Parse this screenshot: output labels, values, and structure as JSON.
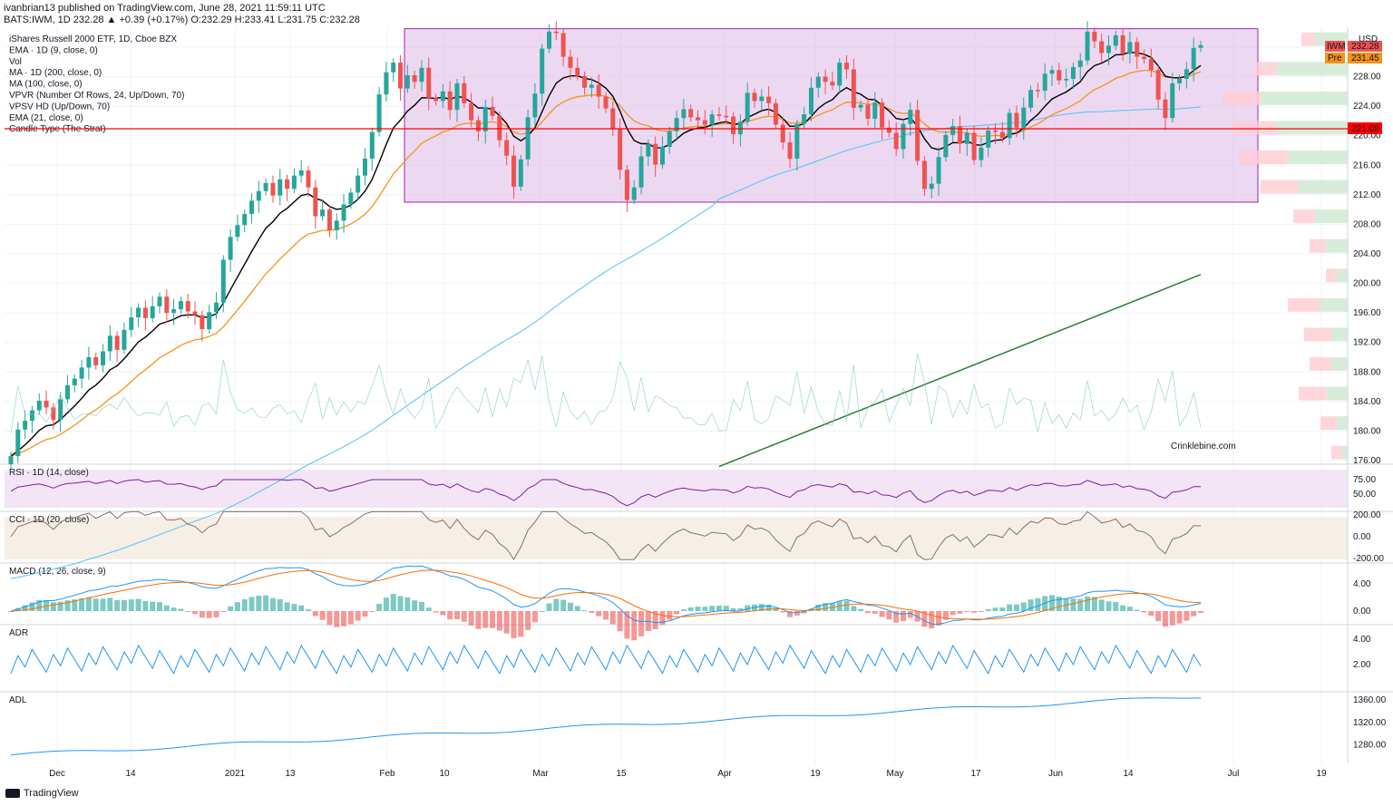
{
  "publisher_line": "ivanbrian13 published on TradingView.com, June 28, 2021 11:59:11 UTC",
  "symbol_line": "BATS:IWM, 1D  232.28  ▲ +0.39 (+0.17%)  O:232.29  H:233.41  L:231.75  C:232.28",
  "indicator_legend": [
    "iShares Russell 2000 ETF, 1D, Cboe BZX",
    "EMA · 1D (9, close, 0)",
    "Vol",
    "MA · 1D (200, close, 0)",
    "MA (100, close, 0)",
    "VPVR (Number Of Rows, 24, Up/Down, 70)",
    "VPSV HD (Up/Down, 70)",
    "EMA (21, close, 0)",
    "Candle Type (The Strat)"
  ],
  "price_badges": {
    "symbol": "IWM",
    "symbol_price": "232.28",
    "pre": "Pre",
    "pre_price": "231.45",
    "hline_price": "221.08",
    "currency": "USD"
  },
  "watermark": "Crinklebine.com",
  "panes": {
    "rsi": "RSI · 1D (14, close)",
    "cci": "CCI · 1D (20, close)",
    "macd": "MACD (12, 26, close, 9)",
    "adr": "ADR",
    "adl": "ADL"
  },
  "footer": "TradingView",
  "colors": {
    "up": "#26a69a",
    "down": "#ef5350",
    "range_box": "#9c27b0",
    "ema9": "#000000",
    "ema21": "#f7931a",
    "ma100": "#4fc3f7",
    "ma200": "#2e7d32",
    "hline": "#ff0000"
  },
  "chart_data": {
    "type": "candlestick",
    "x_ticks": [
      "Dec",
      "14",
      "2021",
      "13",
      "Feb",
      "10",
      "Mar",
      "15",
      "Apr",
      "19",
      "May",
      "17",
      "Jun",
      "14",
      "Jul",
      "19"
    ],
    "price_axis_ticks": [
      "232.00",
      "228.00",
      "224.00",
      "220.00",
      "216.00",
      "212.00",
      "208.00",
      "204.00",
      "200.00",
      "196.00",
      "192.00",
      "188.00",
      "184.00",
      "180.00",
      "176.00"
    ],
    "rsi_ticks": [
      "75.00",
      "50.00"
    ],
    "cci_ticks": [
      "200.00",
      "0.00",
      "-200.00"
    ],
    "macd_ticks": [
      "4.00",
      "0.00"
    ],
    "adr_ticks": [
      "4.00",
      "2.00"
    ],
    "adl_ticks": [
      "1360.00",
      "1320.00",
      "1280.00"
    ],
    "trading_range": [
      211.0,
      234.5
    ],
    "horizontal_line": 221.08,
    "close": [
      176.6,
      180.2,
      181.4,
      182.8,
      184.1,
      183.2,
      181.5,
      184.3,
      186.2,
      187.1,
      188.6,
      190.0,
      188.9,
      190.8,
      192.9,
      191.0,
      193.7,
      195.4,
      196.7,
      195.3,
      196.9,
      198.2,
      196.0,
      196.5,
      197.6,
      196.2,
      195.7,
      193.8,
      196.1,
      197.4,
      203.2,
      206.3,
      207.9,
      209.4,
      211.2,
      212.5,
      213.6,
      211.9,
      214.1,
      212.8,
      214.6,
      215.3,
      213.0,
      209.1,
      210.0,
      207.2,
      208.5,
      210.7,
      212.3,
      214.6,
      216.9,
      220.5,
      225.6,
      228.6,
      229.9,
      226.4,
      228.2,
      227.3,
      229.2,
      225.1,
      224.7,
      226.0,
      223.5,
      227.1,
      224.4,
      222.1,
      220.6,
      223.9,
      222.7,
      219.4,
      217.3,
      213.1,
      216.8,
      222.5,
      225.7,
      231.8,
      234.1,
      233.9,
      230.7,
      229.2,
      228.1,
      226.5,
      226.9,
      225.3,
      223.7,
      220.9,
      215.4,
      211.3,
      213.0,
      217.2,
      218.9,
      216.1,
      218.5,
      220.6,
      222.4,
      223.6,
      222.5,
      222.1,
      221.5,
      222.9,
      222.7,
      222.6,
      220.2,
      221.9,
      225.8,
      224.7,
      225.3,
      224.4,
      221.5,
      219.1,
      216.9,
      221.6,
      222.9,
      226.5,
      228.0,
      227.3,
      226.8,
      229.9,
      229.0,
      223.8,
      224.2,
      222.3,
      224.5,
      221.1,
      220.4,
      218.2,
      221.6,
      223.5,
      216.6,
      212.8,
      213.5,
      217.1,
      220.1,
      221.3,
      218.9,
      220.4,
      216.7,
      218.4,
      220.7,
      220.5,
      219.7,
      223.1,
      221.1,
      223.8,
      226.2,
      226.1,
      228.4,
      228.9,
      227.5,
      227.7,
      229.3,
      230.2,
      234.1,
      232.8,
      231.2,
      232.2,
      233.6,
      231.1,
      232.7,
      230.7,
      230.4,
      228.9,
      224.9,
      222.4,
      227.1,
      227.7,
      229.0,
      231.9,
      232.28
    ]
  }
}
